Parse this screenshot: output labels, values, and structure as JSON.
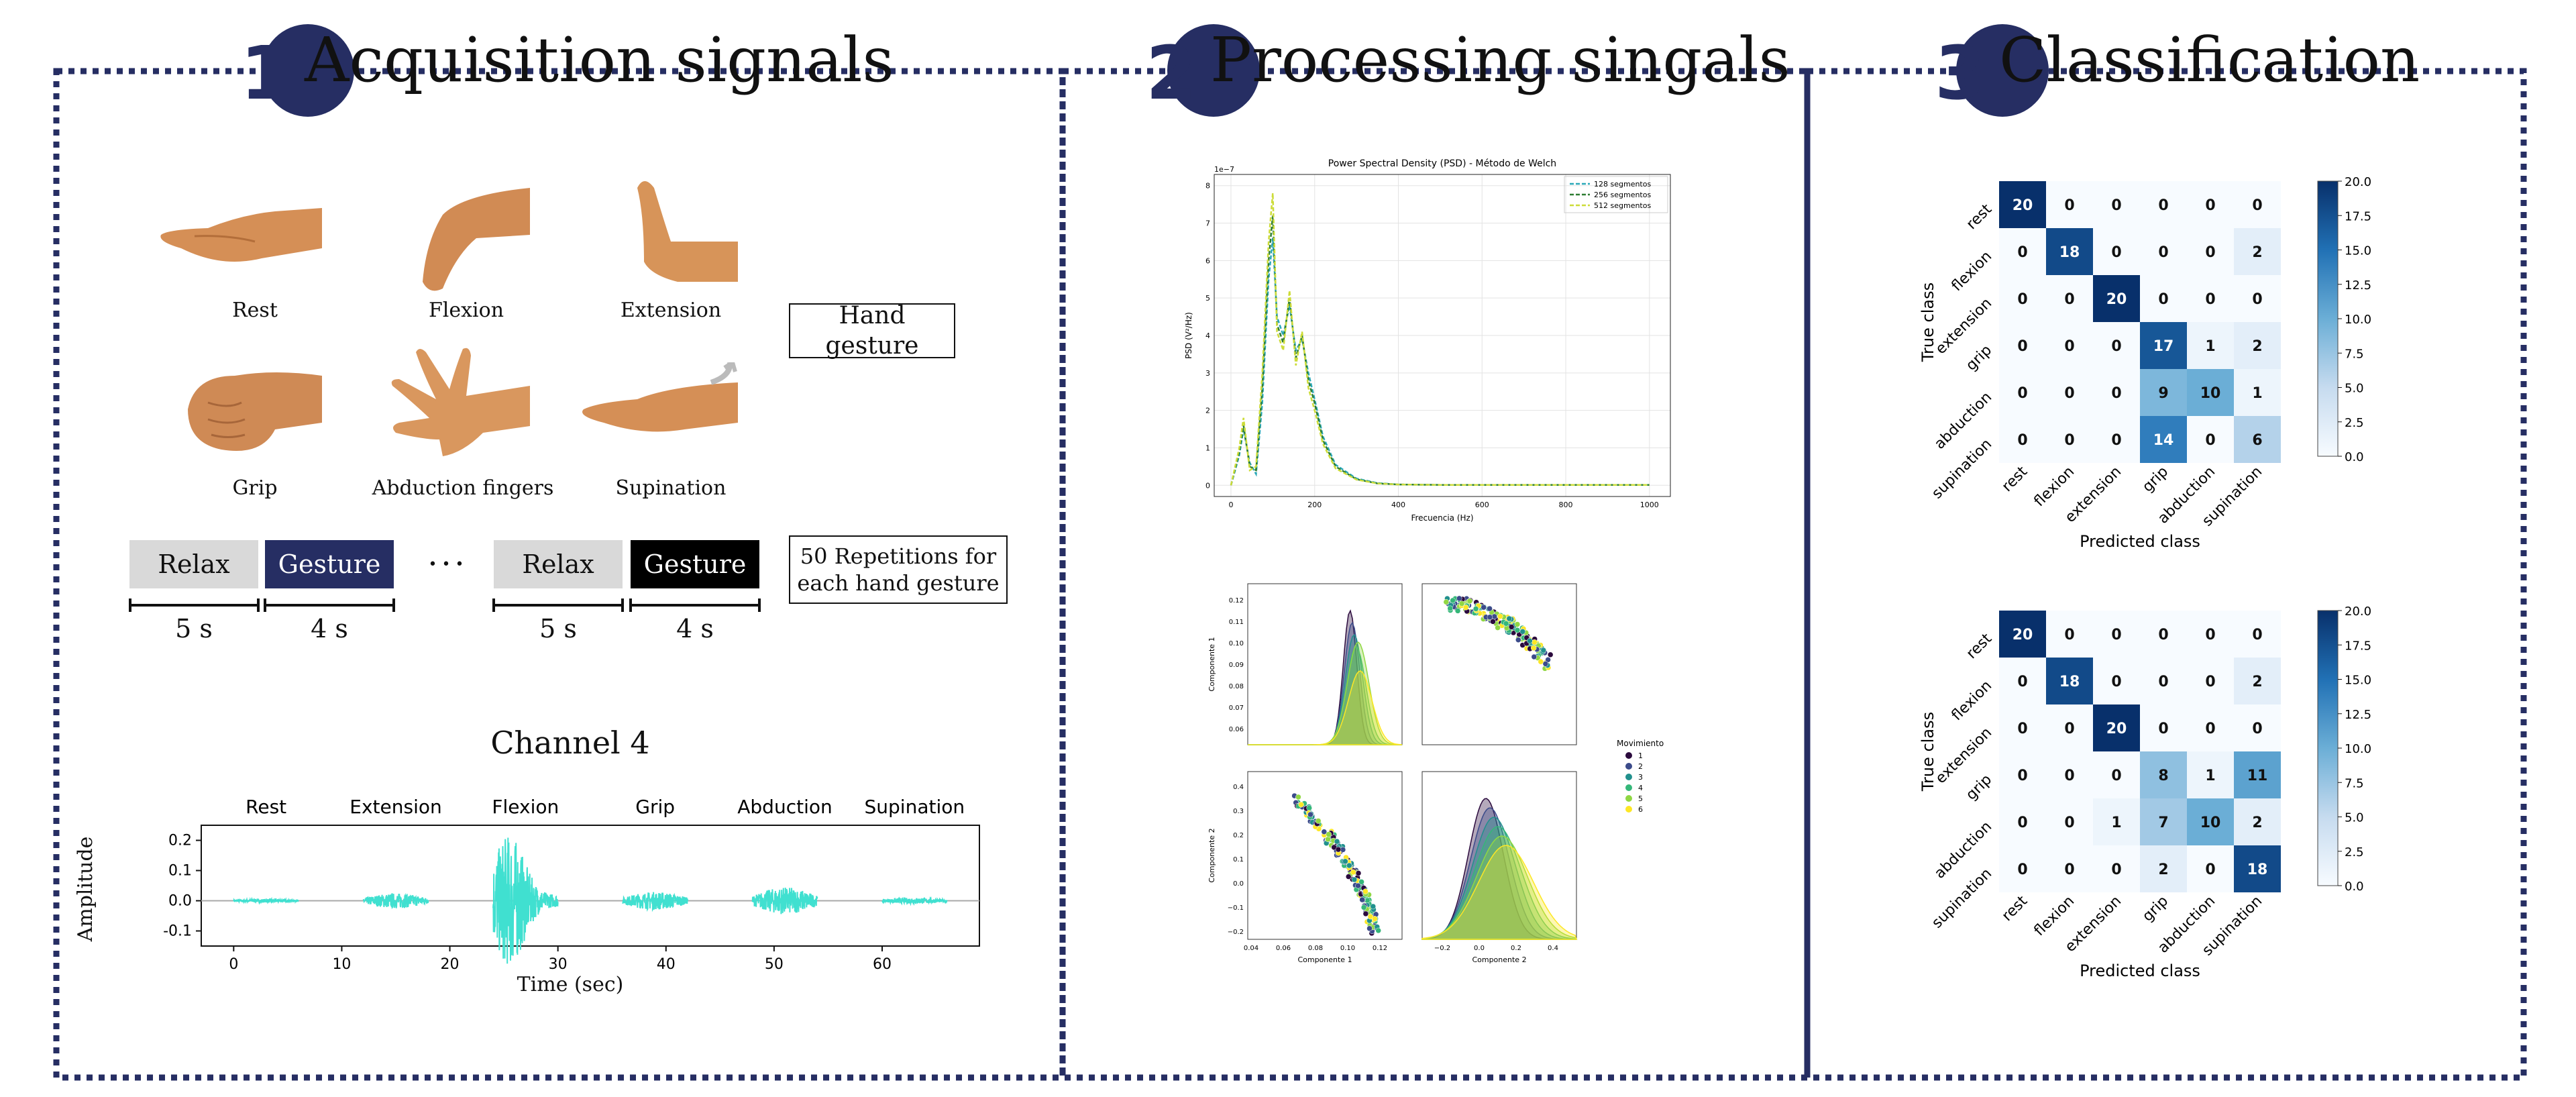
{
  "panels": [
    {
      "number": "1",
      "title": "Acquisition signals"
    },
    {
      "number": "2",
      "title": "Processing singals"
    },
    {
      "number": "3",
      "title": "Classification"
    }
  ],
  "gestures": [
    "Rest",
    "Flexion",
    "Extension",
    "Grip",
    "Abduction fingers",
    "Supination"
  ],
  "hand_gesture_label": "Hand gesture",
  "repetitions_label": "50 Repetitions for each hand gesture",
  "protocol": {
    "relax": "Relax",
    "gesture": "Gesture",
    "ellipsis": "• • •",
    "relax_duration": "5 s",
    "gesture_duration": "4 s"
  },
  "colors": {
    "navy": "#262e63",
    "relax_box": "#d9d9d9",
    "gesture_box_1": "#262e63",
    "gesture_box_2": "#000000",
    "emg": "#40e0d0"
  },
  "chart_data": [
    {
      "type": "line",
      "title": "Channel 4",
      "xlabel": "Time (sec)",
      "ylabel": "Amplitude",
      "xticks": [
        0,
        10,
        20,
        30,
        40,
        50,
        60
      ],
      "yticks": [
        -0.1,
        0.0,
        0.1,
        0.2
      ],
      "xlim": [
        -3,
        69
      ],
      "ylim": [
        -0.15,
        0.25
      ],
      "segments": [
        {
          "label": "Rest",
          "start": 0,
          "end": 6,
          "amplitude": 0.006
        },
        {
          "label": "Extension",
          "start": 12,
          "end": 18,
          "amplitude": 0.025
        },
        {
          "label": "Flexion",
          "start": 24,
          "end": 30,
          "amplitude": 0.2
        },
        {
          "label": "Grip",
          "start": 36,
          "end": 42,
          "amplitude": 0.03
        },
        {
          "label": "Abduction",
          "start": 48,
          "end": 54,
          "amplitude": 0.045
        },
        {
          "label": "Supination",
          "start": 60,
          "end": 66,
          "amplitude": 0.01
        }
      ]
    },
    {
      "type": "line",
      "title": "Power Spectral Density (PSD) - Método de Welch",
      "xlabel": "Frecuencia (Hz)",
      "ylabel": "PSD (V²/Hz)",
      "exponent": "1e−7",
      "xticks": [
        0,
        200,
        400,
        600,
        800,
        1000
      ],
      "yticks": [
        0,
        1,
        2,
        3,
        4,
        5,
        6,
        7,
        8
      ],
      "xlim": [
        -40,
        1050
      ],
      "ylim": [
        -0.3,
        8.3
      ],
      "grid": true,
      "legend": "top-right",
      "x": [
        0,
        20,
        30,
        45,
        60,
        75,
        90,
        100,
        110,
        125,
        140,
        155,
        170,
        185,
        200,
        220,
        250,
        300,
        350,
        400,
        500,
        600,
        700,
        800,
        900,
        1000
      ],
      "series": [
        {
          "name": "128 segmentos",
          "color": "#2aa8b8",
          "values": [
            0,
            0.8,
            1.5,
            0.6,
            0.3,
            2.2,
            5.5,
            6.6,
            4.5,
            4.0,
            4.8,
            3.6,
            3.9,
            3.0,
            2.3,
            1.3,
            0.55,
            0.18,
            0.06,
            0.02,
            0.01,
            0.01,
            0.01,
            0.01,
            0.01,
            0.01
          ]
        },
        {
          "name": "256 segmentos",
          "color": "#2e7d32",
          "values": [
            0,
            0.9,
            1.6,
            0.5,
            0.4,
            2.6,
            6.0,
            7.2,
            4.3,
            3.8,
            5.0,
            3.4,
            4.0,
            2.8,
            2.2,
            1.2,
            0.5,
            0.16,
            0.05,
            0.02,
            0.01,
            0.01,
            0.01,
            0.01,
            0.01,
            0.01
          ]
        },
        {
          "name": "512 segmentos",
          "color": "#cddc39",
          "values": [
            0,
            1.0,
            1.8,
            0.4,
            0.5,
            3.0,
            6.5,
            7.8,
            4.1,
            3.6,
            5.2,
            3.2,
            4.1,
            2.6,
            2.0,
            1.1,
            0.45,
            0.15,
            0.05,
            0.02,
            0.01,
            0.01,
            0.01,
            0.01,
            0.01,
            0.01
          ]
        }
      ]
    },
    {
      "type": "scatter",
      "legend_title": "Movimiento",
      "legend_entries": [
        "1",
        "2",
        "3",
        "4",
        "5",
        "6"
      ],
      "colors": [
        "#2b0a3d",
        "#3b4b8a",
        "#21908d",
        "#35b779",
        "#90d743",
        "#fde725"
      ],
      "x1_label": "Componente 1",
      "x2_label": "Componente 2",
      "y1_label": "Componente 1",
      "y2_label": "Componente 2",
      "c1_ticks": [
        "0.04",
        "0.06",
        "0.08",
        "0.10",
        "0.12"
      ],
      "c2_ticks": [
        "−0.2",
        "0.0",
        "0.2",
        "0.4"
      ],
      "c1_yticks": [
        "0.06",
        "0.07",
        "0.08",
        "0.09",
        "0.10",
        "0.11",
        "0.12"
      ],
      "c2_yticks": [
        "−0.2",
        "−0.1",
        "0.0",
        "0.1",
        "0.2",
        "0.3",
        "0.4"
      ]
    },
    {
      "type": "heatmap",
      "xlabel": "Predicted class",
      "ylabel": "True class",
      "classes": [
        "rest",
        "flexion",
        "extension",
        "grip",
        "abduction",
        "supination"
      ],
      "colorbar_ticks": [
        "20.0",
        "17.5",
        "15.0",
        "12.5",
        "10.0",
        "7.5",
        "5.0",
        "2.5",
        "0.0"
      ],
      "max": 20,
      "matrix": [
        [
          20,
          0,
          0,
          0,
          0,
          0
        ],
        [
          0,
          18,
          0,
          0,
          0,
          2
        ],
        [
          0,
          0,
          20,
          0,
          0,
          0
        ],
        [
          0,
          0,
          0,
          17,
          1,
          2
        ],
        [
          0,
          0,
          0,
          9,
          10,
          1
        ],
        [
          0,
          0,
          0,
          14,
          0,
          6
        ]
      ]
    },
    {
      "type": "heatmap",
      "xlabel": "Predicted class",
      "ylabel": "True class",
      "classes": [
        "rest",
        "flexion",
        "extension",
        "grip",
        "abduction",
        "supination"
      ],
      "colorbar_ticks": [
        "20.0",
        "17.5",
        "15.0",
        "12.5",
        "10.0",
        "7.5",
        "5.0",
        "2.5",
        "0.0"
      ],
      "max": 20,
      "matrix": [
        [
          20,
          0,
          0,
          0,
          0,
          0
        ],
        [
          0,
          18,
          0,
          0,
          0,
          2
        ],
        [
          0,
          0,
          20,
          0,
          0,
          0
        ],
        [
          0,
          0,
          0,
          8,
          1,
          11
        ],
        [
          0,
          0,
          1,
          7,
          10,
          2
        ],
        [
          0,
          0,
          0,
          2,
          0,
          18
        ]
      ]
    }
  ]
}
